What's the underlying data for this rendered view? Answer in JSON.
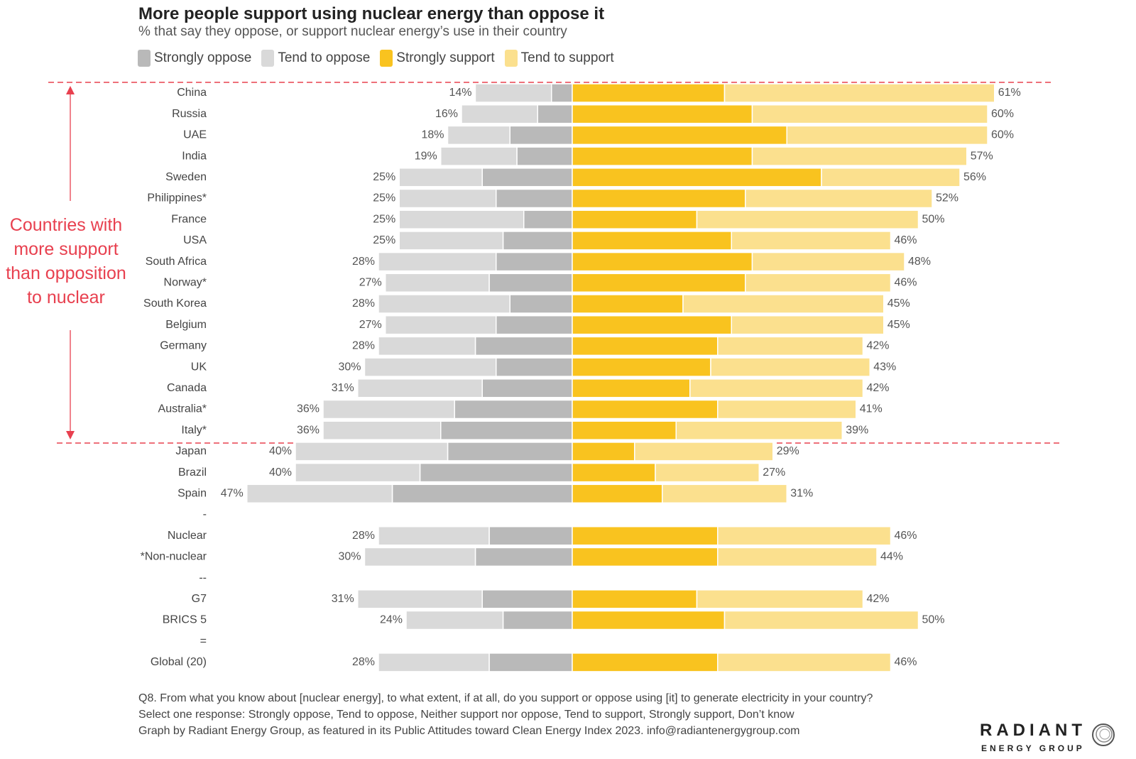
{
  "title": "More people support using nuclear energy than oppose it",
  "subtitle": "% that say they oppose, or support nuclear energy’s use in their country",
  "legend": [
    {
      "label": "Strongly oppose",
      "color": "#b9b9b9"
    },
    {
      "label": "Tend to oppose",
      "color": "#d9d9d9"
    },
    {
      "label": "Strongly support",
      "color": "#f9c31f"
    },
    {
      "label": "Tend to support",
      "color": "#fbe08e"
    }
  ],
  "annotation": "Countries with more support than opposition to nuclear",
  "footnotes": [
    "Q8. From what you know about [nuclear energy], to what extent, if at all, do you support or oppose using [it] to generate electricity in your country?",
    "Select one response: Strongly oppose, Tend to oppose, Neither support nor oppose, Tend to support, Strongly support, Don’t know",
    "Graph by Radiant Energy Group, as featured in its Public Attitudes toward Clean Energy Index 2023. info@radiantenergygroup.com"
  ],
  "logo": {
    "main": "RADIANT",
    "sub": "ENERGY GROUP"
  },
  "chart_data": {
    "type": "bar",
    "orientation": "diverging horizontal stacked",
    "unit": "%",
    "series": [
      {
        "name": "Strongly oppose",
        "color": "#b9b9b9"
      },
      {
        "name": "Tend to oppose",
        "color": "#d9d9d9"
      },
      {
        "name": "Strongly support",
        "color": "#f9c31f"
      },
      {
        "name": "Tend to support",
        "color": "#fbe08e"
      }
    ],
    "rows": [
      {
        "label": "China",
        "strongly_oppose": 3,
        "tend_oppose": 11,
        "strongly_support": 22,
        "tend_support": 39,
        "oppose_total": "14%",
        "support_total": "61%"
      },
      {
        "label": "Russia",
        "strongly_oppose": 5,
        "tend_oppose": 11,
        "strongly_support": 26,
        "tend_support": 34,
        "oppose_total": "16%",
        "support_total": "60%"
      },
      {
        "label": "UAE",
        "strongly_oppose": 9,
        "tend_oppose": 9,
        "strongly_support": 31,
        "tend_support": 29,
        "oppose_total": "18%",
        "support_total": "60%"
      },
      {
        "label": "India",
        "strongly_oppose": 8,
        "tend_oppose": 11,
        "strongly_support": 26,
        "tend_support": 31,
        "oppose_total": "19%",
        "support_total": "57%"
      },
      {
        "label": "Sweden",
        "strongly_oppose": 13,
        "tend_oppose": 12,
        "strongly_support": 36,
        "tend_support": 20,
        "oppose_total": "25%",
        "support_total": "56%"
      },
      {
        "label": "Philippines*",
        "strongly_oppose": 11,
        "tend_oppose": 14,
        "strongly_support": 25,
        "tend_support": 27,
        "oppose_total": "25%",
        "support_total": "52%"
      },
      {
        "label": "France",
        "strongly_oppose": 7,
        "tend_oppose": 18,
        "strongly_support": 18,
        "tend_support": 32,
        "oppose_total": "25%",
        "support_total": "50%"
      },
      {
        "label": "USA",
        "strongly_oppose": 10,
        "tend_oppose": 15,
        "strongly_support": 23,
        "tend_support": 23,
        "oppose_total": "25%",
        "support_total": "46%"
      },
      {
        "label": "South Africa",
        "strongly_oppose": 11,
        "tend_oppose": 17,
        "strongly_support": 26,
        "tend_support": 22,
        "oppose_total": "28%",
        "support_total": "48%"
      },
      {
        "label": "Norway*",
        "strongly_oppose": 12,
        "tend_oppose": 15,
        "strongly_support": 25,
        "tend_support": 21,
        "oppose_total": "27%",
        "support_total": "46%"
      },
      {
        "label": "South Korea",
        "strongly_oppose": 9,
        "tend_oppose": 19,
        "strongly_support": 16,
        "tend_support": 29,
        "oppose_total": "28%",
        "support_total": "45%"
      },
      {
        "label": "Belgium",
        "strongly_oppose": 11,
        "tend_oppose": 16,
        "strongly_support": 23,
        "tend_support": 22,
        "oppose_total": "27%",
        "support_total": "45%"
      },
      {
        "label": "Germany",
        "strongly_oppose": 14,
        "tend_oppose": 14,
        "strongly_support": 21,
        "tend_support": 21,
        "oppose_total": "28%",
        "support_total": "42%"
      },
      {
        "label": "UK",
        "strongly_oppose": 11,
        "tend_oppose": 19,
        "strongly_support": 20,
        "tend_support": 23,
        "oppose_total": "30%",
        "support_total": "43%"
      },
      {
        "label": "Canada",
        "strongly_oppose": 13,
        "tend_oppose": 18,
        "strongly_support": 17,
        "tend_support": 25,
        "oppose_total": "31%",
        "support_total": "42%"
      },
      {
        "label": "Australia*",
        "strongly_oppose": 17,
        "tend_oppose": 19,
        "strongly_support": 21,
        "tend_support": 20,
        "oppose_total": "36%",
        "support_total": "41%"
      },
      {
        "label": "Italy*",
        "strongly_oppose": 19,
        "tend_oppose": 17,
        "strongly_support": 15,
        "tend_support": 24,
        "oppose_total": "36%",
        "support_total": "39%"
      },
      {
        "label": "Japan",
        "strongly_oppose": 18,
        "tend_oppose": 22,
        "strongly_support": 9,
        "tend_support": 20,
        "oppose_total": "40%",
        "support_total": "29%"
      },
      {
        "label": "Brazil",
        "strongly_oppose": 22,
        "tend_oppose": 18,
        "strongly_support": 12,
        "tend_support": 15,
        "oppose_total": "40%",
        "support_total": "27%"
      },
      {
        "label": "Spain",
        "strongly_oppose": 26,
        "tend_oppose": 21,
        "strongly_support": 13,
        "tend_support": 18,
        "oppose_total": "47%",
        "support_total": "31%"
      },
      {
        "label": "-"
      },
      {
        "label": "Nuclear",
        "strongly_oppose": 12,
        "tend_oppose": 16,
        "strongly_support": 21,
        "tend_support": 25,
        "oppose_total": "28%",
        "support_total": "46%"
      },
      {
        "label": "*Non-nuclear",
        "strongly_oppose": 14,
        "tend_oppose": 16,
        "strongly_support": 21,
        "tend_support": 23,
        "oppose_total": "30%",
        "support_total": "44%"
      },
      {
        "label": "--"
      },
      {
        "label": "G7",
        "strongly_oppose": 13,
        "tend_oppose": 18,
        "strongly_support": 18,
        "tend_support": 24,
        "oppose_total": "31%",
        "support_total": "42%"
      },
      {
        "label": "BRICS 5",
        "strongly_oppose": 10,
        "tend_oppose": 14,
        "strongly_support": 22,
        "tend_support": 28,
        "oppose_total": "24%",
        "support_total": "50%"
      },
      {
        "label": "="
      },
      {
        "label": "Global (20)",
        "strongly_oppose": 12,
        "tend_oppose": 16,
        "strongly_support": 21,
        "tend_support": 25,
        "oppose_total": "28%",
        "support_total": "46%"
      }
    ]
  }
}
